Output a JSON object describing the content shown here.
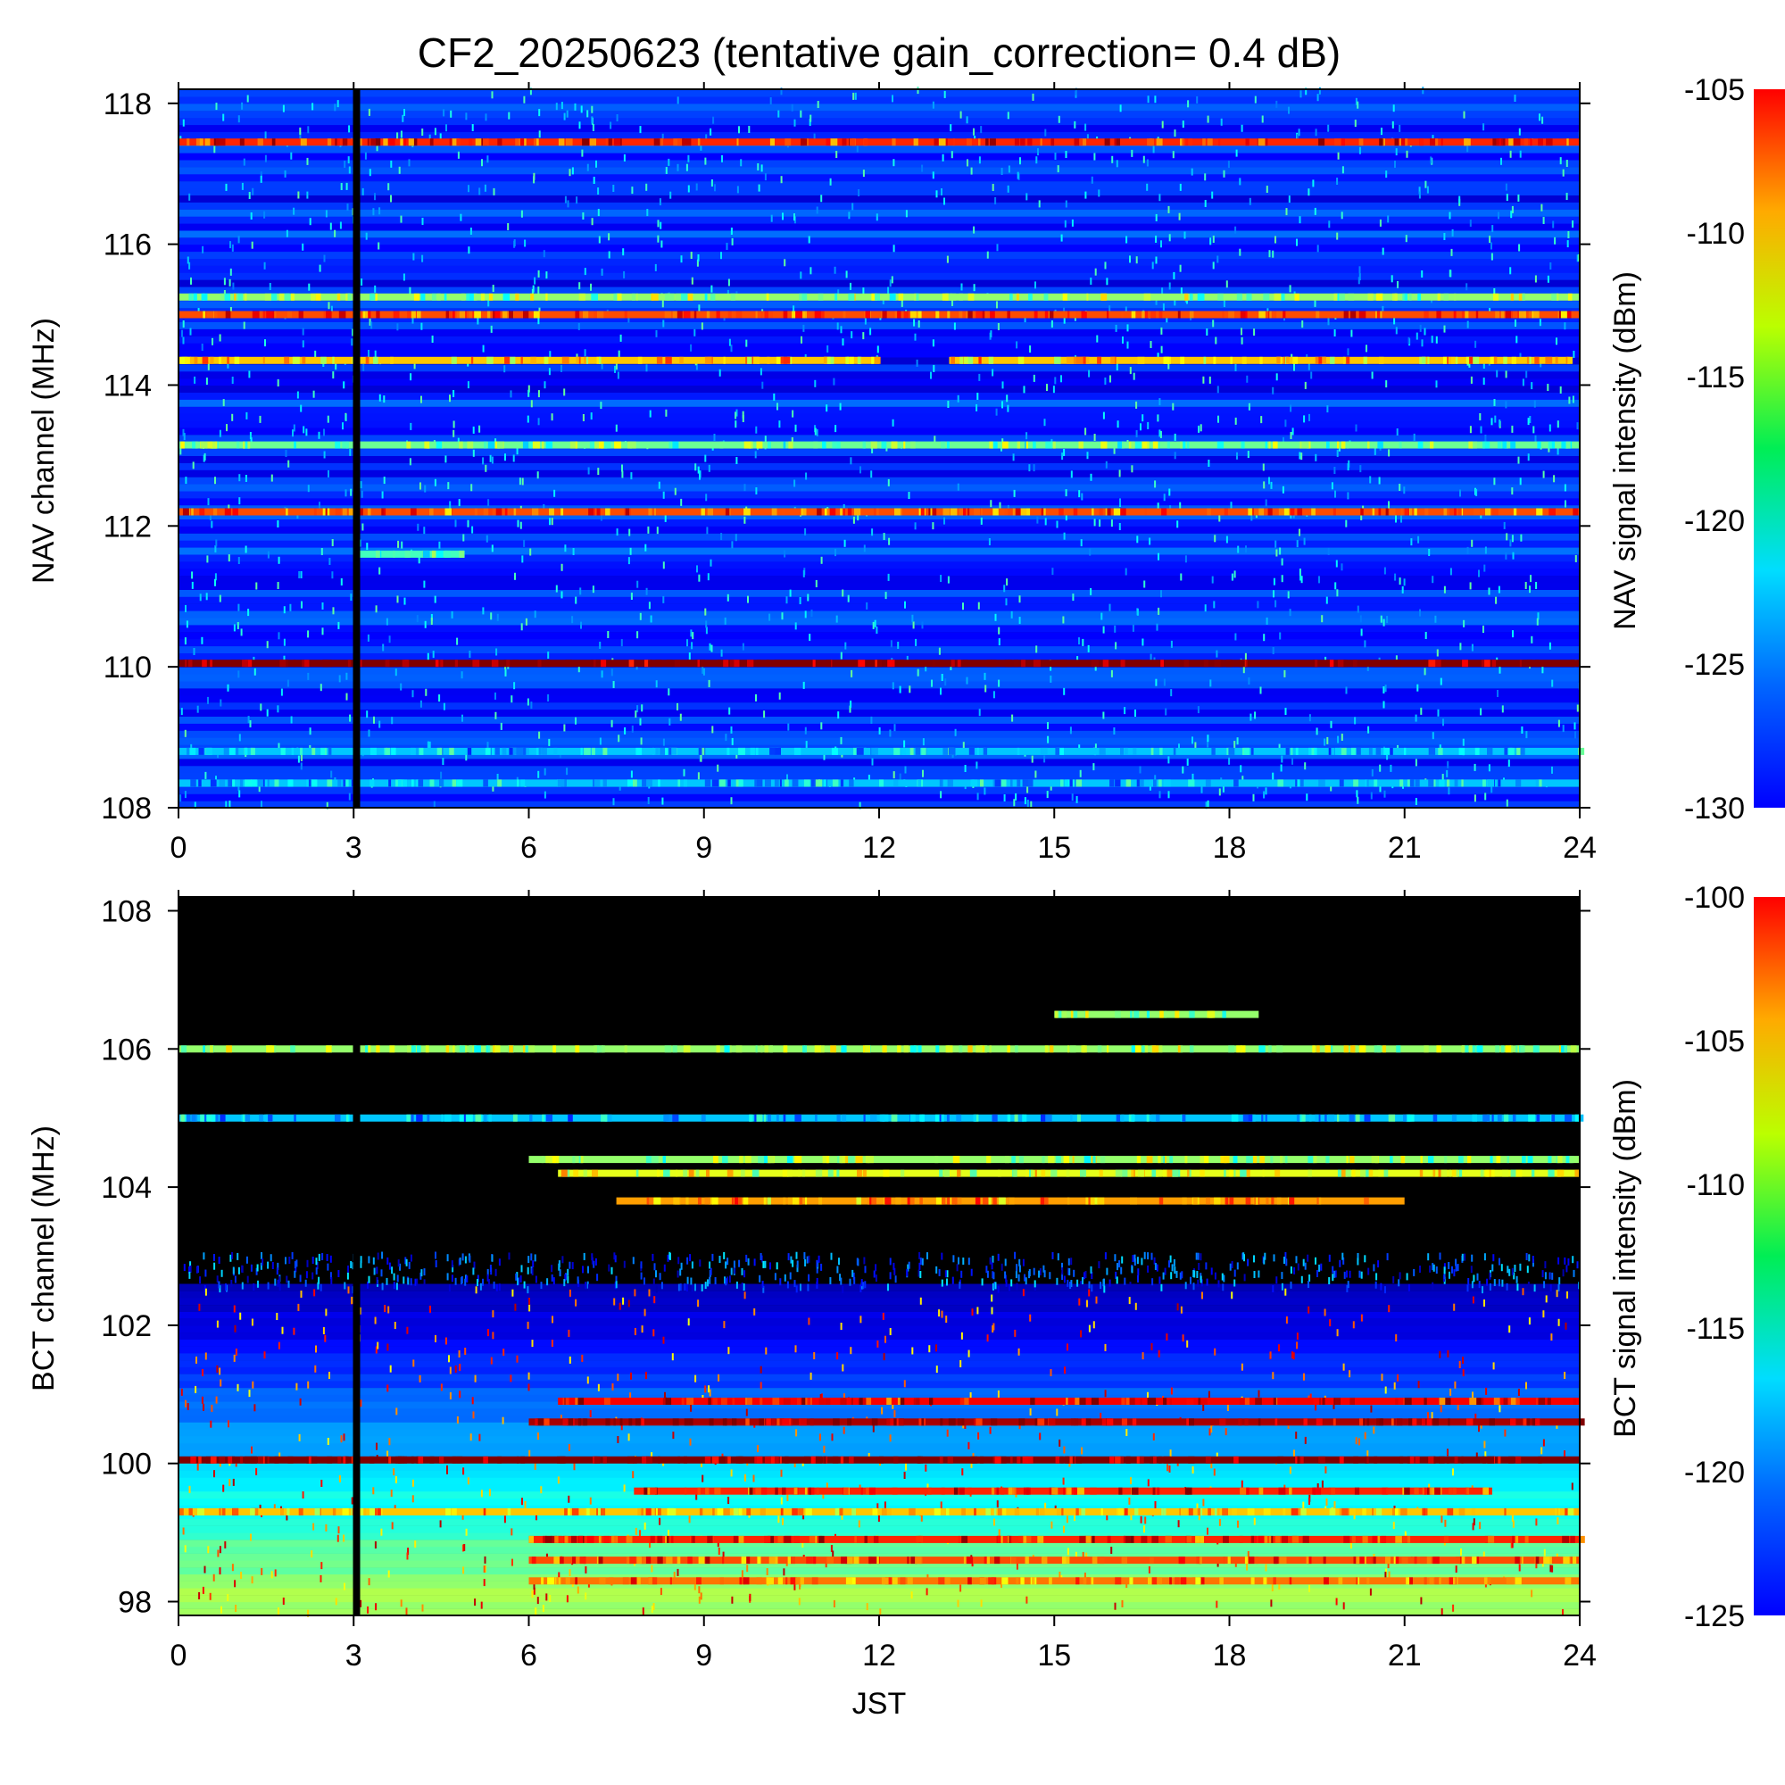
{
  "title": "CF2_20250623 (tentative gain_correction=  0.4 dB)",
  "chart_data": [
    {
      "type": "heatmap",
      "name": "NAV",
      "xlabel": "",
      "ylabel": "NAV channel (MHz)",
      "colorbar_label": "NAV signal intensity (dBm)",
      "xlim": [
        0,
        24
      ],
      "ylim": [
        108,
        118.2
      ],
      "x_ticks": [
        0,
        3,
        6,
        9,
        12,
        15,
        18,
        21,
        24
      ],
      "y_ticks": [
        108,
        110,
        112,
        114,
        116,
        118
      ],
      "colorbar_range": [
        -130,
        -105
      ],
      "colorbar_ticks": [
        -105,
        -110,
        -115,
        -120,
        -125,
        -130
      ],
      "background_level": -126,
      "gap_time": 3.05,
      "strong_channels": [
        {
          "freq": 117.45,
          "level": -109,
          "start": 0,
          "end": 24
        },
        {
          "freq": 115.25,
          "level": -117,
          "start": 0,
          "end": 24
        },
        {
          "freq": 115.0,
          "level": -110,
          "start": 0,
          "end": 24
        },
        {
          "freq": 114.35,
          "level": -113,
          "start": 0,
          "end": 12
        },
        {
          "freq": 114.35,
          "level": -113,
          "start": 13.2,
          "end": 23.8
        },
        {
          "freq": 113.15,
          "level": -118,
          "start": 0,
          "end": 24
        },
        {
          "freq": 112.2,
          "level": -110,
          "start": 0,
          "end": 24
        },
        {
          "freq": 111.6,
          "level": -119,
          "start": 3.1,
          "end": 4.9
        },
        {
          "freq": 110.05,
          "level": -105,
          "start": 0,
          "end": 24
        },
        {
          "freq": 108.8,
          "level": -122,
          "start": 0,
          "end": 24
        },
        {
          "freq": 108.35,
          "level": -122,
          "start": 0,
          "end": 24
        }
      ]
    },
    {
      "type": "heatmap",
      "name": "BCT",
      "xlabel": "JST",
      "ylabel": "BCT channel (MHz)",
      "colorbar_label": "BCT signal intensity (dBm)",
      "xlim": [
        0,
        24
      ],
      "ylim": [
        97.8,
        108.2
      ],
      "x_ticks": [
        0,
        3,
        6,
        9,
        12,
        15,
        18,
        21,
        24
      ],
      "y_ticks": [
        98,
        100,
        102,
        104,
        106,
        108
      ],
      "colorbar_range": [
        -125,
        -100
      ],
      "colorbar_ticks": [
        -100,
        -105,
        -110,
        -115,
        -120,
        -125
      ],
      "noise_floor_top": 102.5,
      "gap_time": 3.05,
      "strong_channels": [
        {
          "freq": 106.0,
          "level": -112,
          "start": 0,
          "end": 24
        },
        {
          "freq": 105.0,
          "level": -117,
          "start": 0,
          "end": 24
        },
        {
          "freq": 104.4,
          "level": -112,
          "start": 6,
          "end": 24
        },
        {
          "freq": 104.2,
          "level": -110,
          "start": 6.5,
          "end": 24
        },
        {
          "freq": 103.8,
          "level": -107,
          "start": 7.5,
          "end": 21
        },
        {
          "freq": 106.5,
          "level": -112,
          "start": 15,
          "end": 18.5
        },
        {
          "freq": 100.9,
          "level": -103,
          "start": 6.5,
          "end": 24
        },
        {
          "freq": 100.6,
          "level": -101,
          "start": 6,
          "end": 24
        },
        {
          "freq": 100.05,
          "level": -100,
          "start": 0,
          "end": 24
        },
        {
          "freq": 99.6,
          "level": -104,
          "start": 7.8,
          "end": 22.5
        },
        {
          "freq": 99.3,
          "level": -108,
          "start": 0,
          "end": 24
        },
        {
          "freq": 98.9,
          "level": -104,
          "start": 6,
          "end": 24
        },
        {
          "freq": 98.6,
          "level": -105,
          "start": 6,
          "end": 24
        },
        {
          "freq": 98.3,
          "level": -106,
          "start": 6,
          "end": 24
        }
      ]
    }
  ]
}
